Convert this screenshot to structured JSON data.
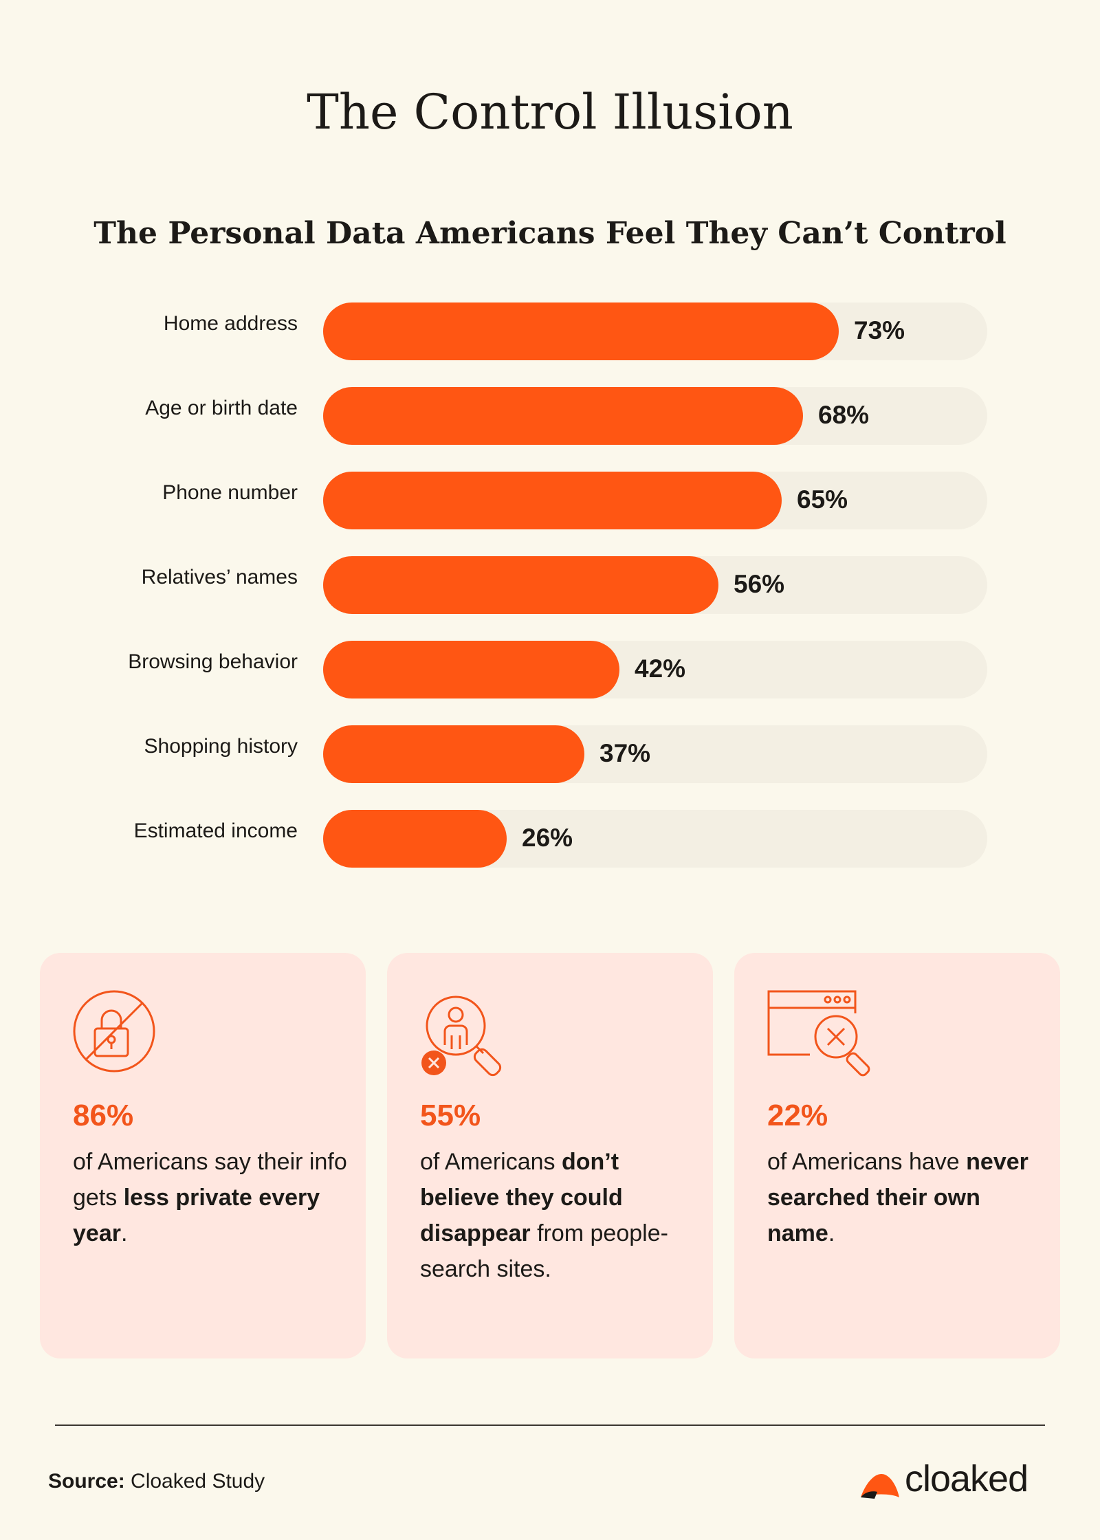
{
  "title": "The Control Illusion",
  "subtitle": "The Personal Data Americans Feel They Can’t Control",
  "colors": {
    "accent": "#FF5613",
    "track": "#F3EFE3",
    "card_bg": "#FFE7E0",
    "background": "#FBF8EC"
  },
  "chart_data": {
    "type": "bar",
    "orientation": "horizontal",
    "title": "The Personal Data Americans Feel They Can’t Control",
    "categories": [
      "Home address",
      "Age or birth date",
      "Phone number",
      "Relatives’ names",
      "Browsing behavior",
      "Shopping history",
      "Estimated income"
    ],
    "values": [
      73,
      68,
      65,
      56,
      42,
      37,
      26
    ],
    "value_labels": [
      "73%",
      "68%",
      "65%",
      "56%",
      "42%",
      "37%",
      "26%"
    ],
    "xlim": [
      0,
      100
    ],
    "unit": "%",
    "grid": false,
    "legend": "none"
  },
  "cards": [
    {
      "icon": "no-lock-icon",
      "pct": "86%",
      "text_1": "of Americans say their info gets ",
      "bold_1": "less private every year",
      "text_2": ".",
      "bold_2": "",
      "text_3": ""
    },
    {
      "icon": "person-search-icon",
      "pct": "55%",
      "text_1": "of Americans ",
      "bold_1": "don’t believe they could disappear",
      "text_2": " from people-search sites.",
      "bold_2": "",
      "text_3": ""
    },
    {
      "icon": "browser-search-icon",
      "pct": "22%",
      "text_1": "of Americans have ",
      "bold_1": "never searched their own name",
      "text_2": ".",
      "bold_2": "",
      "text_3": ""
    }
  ],
  "footer": {
    "source_label": "Source:",
    "source_value": " Cloaked Study",
    "brand": "cloaked",
    "logo_icon": "cloaked-logo-icon"
  }
}
